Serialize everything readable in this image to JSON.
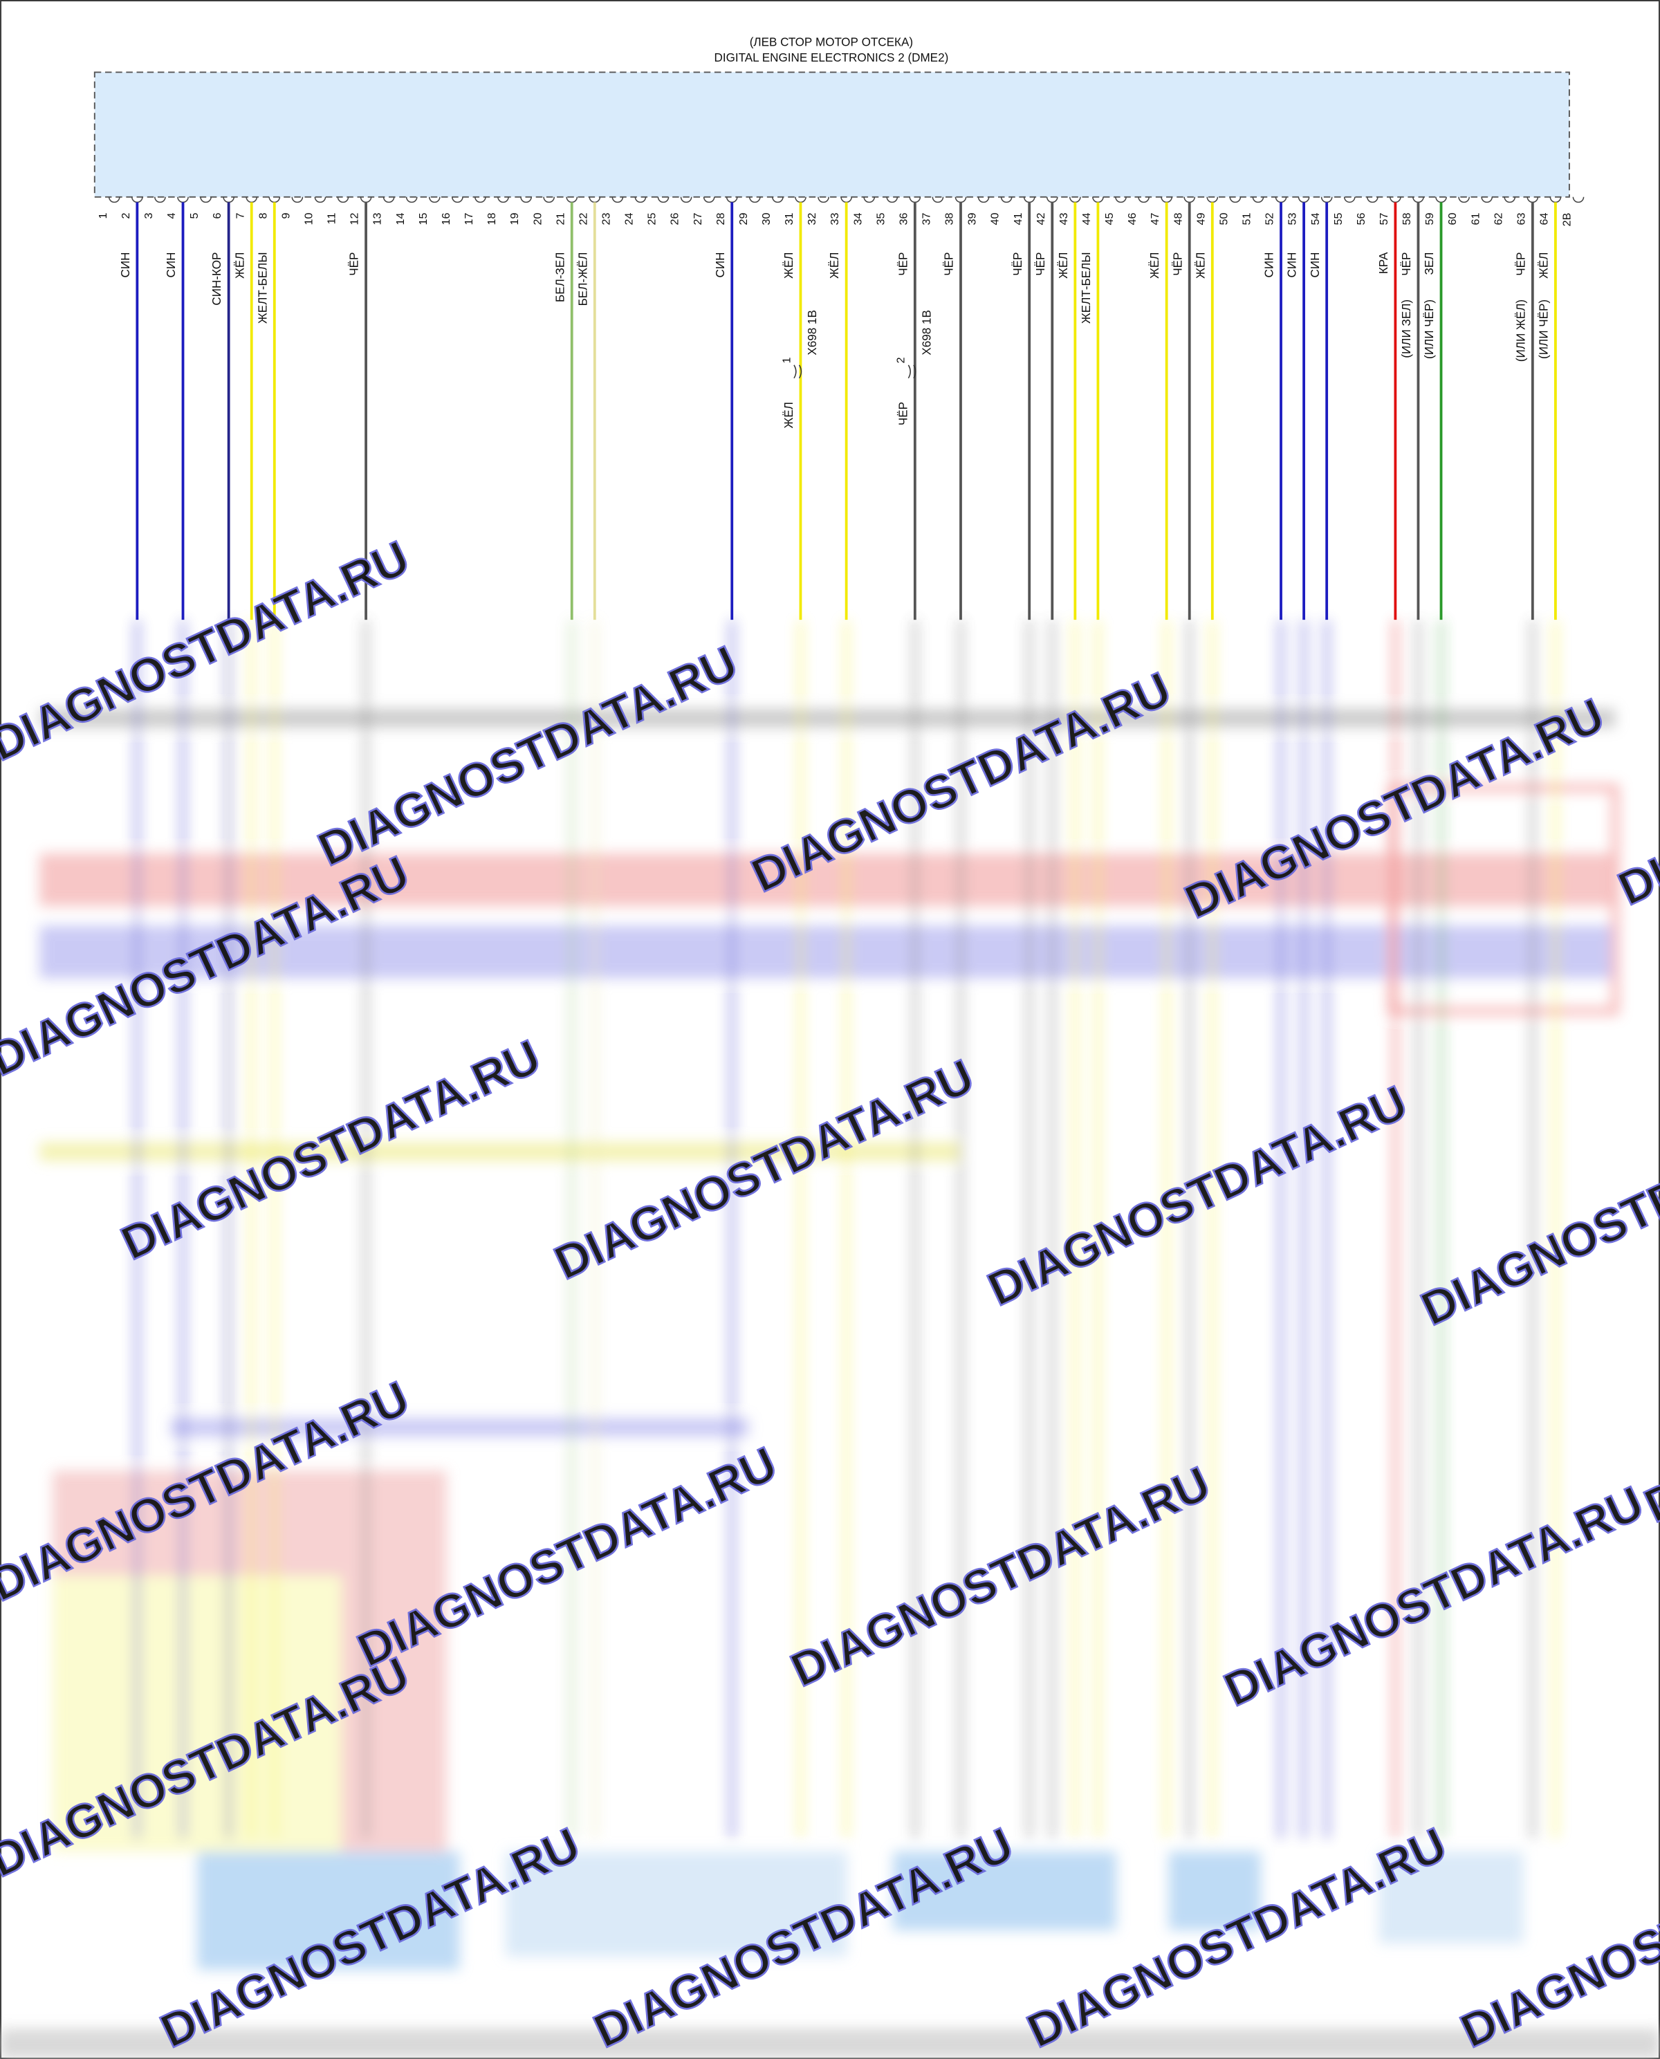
{
  "header": {
    "location": "(ЛЕВ СТОР МОТОР ОТСЕКА)",
    "title": "DIGITAL ENGINE ELECTRONICS 2 (DME2)"
  },
  "pins": [
    {
      "number": "1"
    },
    {
      "number": "2",
      "wire": {
        "label": "СИН",
        "color": "#1c1cc0"
      }
    },
    {
      "number": "3"
    },
    {
      "number": "4",
      "wire": {
        "label": "СИН",
        "color": "#1c1cc0"
      }
    },
    {
      "number": "5"
    },
    {
      "number": "6",
      "wire": {
        "label": "СИН-КОР",
        "color": "#23238a"
      }
    },
    {
      "number": "7",
      "wire": {
        "label": "ЖЁЛ",
        "color": "#f2ea00"
      }
    },
    {
      "number": "8",
      "wire": {
        "label": "ЖЕЛТ-БЕЛЫ",
        "color": "#f2ea00"
      }
    },
    {
      "number": "9"
    },
    {
      "number": "10"
    },
    {
      "number": "11"
    },
    {
      "number": "12",
      "wire": {
        "label": "ЧЁР",
        "color": "#555555"
      }
    },
    {
      "number": "13"
    },
    {
      "number": "14"
    },
    {
      "number": "15"
    },
    {
      "number": "16"
    },
    {
      "number": "17"
    },
    {
      "number": "18"
    },
    {
      "number": "19"
    },
    {
      "number": "20"
    },
    {
      "number": "21",
      "wire": {
        "label": "БЕЛ-ЗЕЛ",
        "color": "#8fbf6a"
      }
    },
    {
      "number": "22",
      "wire": {
        "label": "БЕЛ-ЖЁЛ",
        "color": "#e4df9a"
      }
    },
    {
      "number": "23"
    },
    {
      "number": "24"
    },
    {
      "number": "25"
    },
    {
      "number": "26"
    },
    {
      "number": "27"
    },
    {
      "number": "28",
      "wire": {
        "label": "СИН",
        "color": "#1c1cc0"
      }
    },
    {
      "number": "29"
    },
    {
      "number": "30"
    },
    {
      "number": "31",
      "wire": {
        "label": "ЖЁЛ",
        "color": "#f2ea00",
        "connector": "X698 1B",
        "connector_pin": "1",
        "lower_label": "ЖЁЛ"
      }
    },
    {
      "number": "32"
    },
    {
      "number": "33",
      "wire": {
        "label": "ЖЁЛ",
        "color": "#f2ea00"
      }
    },
    {
      "number": "34"
    },
    {
      "number": "35"
    },
    {
      "number": "36",
      "wire": {
        "label": "ЧЁР",
        "color": "#555555",
        "connector": "X698 1B",
        "connector_pin": "2",
        "lower_label": "ЧЁР"
      }
    },
    {
      "number": "37"
    },
    {
      "number": "38",
      "wire": {
        "label": "ЧЁР",
        "color": "#555555"
      }
    },
    {
      "number": "39"
    },
    {
      "number": "40"
    },
    {
      "number": "41",
      "wire": {
        "label": "ЧЁР",
        "color": "#555555"
      }
    },
    {
      "number": "42",
      "wire": {
        "label": "ЧЁР",
        "color": "#555555"
      }
    },
    {
      "number": "43",
      "wire": {
        "label": "ЖЁЛ",
        "color": "#f2ea00"
      }
    },
    {
      "number": "44",
      "wire": {
        "label": "ЖЕЛТ-БЕЛЫ",
        "color": "#f2ea00"
      }
    },
    {
      "number": "45"
    },
    {
      "number": "46"
    },
    {
      "number": "47",
      "wire": {
        "label": "ЖЁЛ",
        "color": "#f2ea00"
      }
    },
    {
      "number": "48",
      "wire": {
        "label": "ЧЁР",
        "color": "#555555"
      }
    },
    {
      "number": "49",
      "wire": {
        "label": "ЖЁЛ",
        "color": "#f2ea00"
      }
    },
    {
      "number": "50"
    },
    {
      "number": "51"
    },
    {
      "number": "52",
      "wire": {
        "label": "СИН",
        "color": "#1c1cc0"
      }
    },
    {
      "number": "53",
      "wire": {
        "label": "СИН",
        "color": "#1c1cc0"
      }
    },
    {
      "number": "54",
      "wire": {
        "label": "СИН",
        "color": "#1c1cc0"
      }
    },
    {
      "number": "55"
    },
    {
      "number": "56"
    },
    {
      "number": "57",
      "wire": {
        "label": "КРА",
        "color": "#e01010"
      }
    },
    {
      "number": "58",
      "wire": {
        "label": "ЧЁР",
        "color": "#555555",
        "alt": "(ИЛИ ЗЕЛ)"
      }
    },
    {
      "number": "59",
      "wire": {
        "label": "ЗЕЛ",
        "color": "#2a9a2a",
        "alt": "(ИЛИ ЧЁР)"
      }
    },
    {
      "number": "60"
    },
    {
      "number": "61"
    },
    {
      "number": "62"
    },
    {
      "number": "63",
      "wire": {
        "label": "ЧЁР",
        "color": "#555555",
        "alt": "(ИЛИ ЖЁЛ)"
      }
    },
    {
      "number": "64",
      "wire": {
        "label": "ЖЁЛ",
        "color": "#f2ea00",
        "alt": "(ИЛИ ЧЁР)"
      }
    },
    {
      "number": "2B"
    }
  ],
  "watermark": "DIAGNOSTDATA.RU"
}
